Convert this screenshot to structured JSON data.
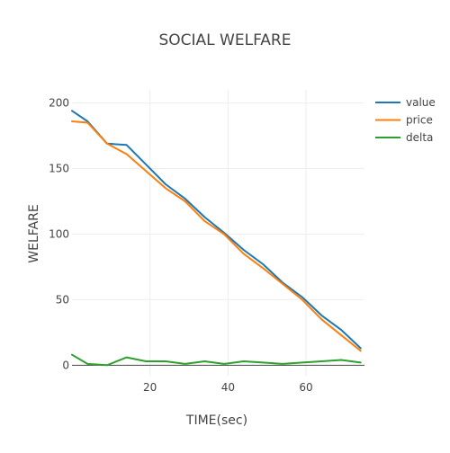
{
  "chart_data": {
    "type": "line",
    "title": "SOCIAL WELFARE",
    "xlabel": "TIME(sec)",
    "ylabel": "WELFARE",
    "xlim": [
      0,
      75
    ],
    "ylim": [
      -8,
      210
    ],
    "x_ticks": [
      20,
      40,
      60
    ],
    "y_ticks": [
      0,
      50,
      100,
      150,
      200
    ],
    "grid": true,
    "legend_position": "top-right",
    "x": [
      0,
      4,
      9,
      14,
      19,
      24,
      29,
      34,
      39,
      44,
      49,
      54,
      59,
      64,
      69,
      74
    ],
    "series": [
      {
        "name": "value",
        "color": "#1f77b4",
        "values": [
          194,
          186,
          169,
          168,
          153,
          138,
          127,
          113,
          101,
          88,
          77,
          63,
          52,
          38,
          27,
          13
        ]
      },
      {
        "name": "price",
        "color": "#ff7f0e",
        "values": [
          186,
          185,
          169,
          161,
          148,
          135,
          125,
          110,
          100,
          85,
          74,
          62,
          50,
          35,
          23,
          11
        ]
      },
      {
        "name": "delta",
        "color": "#2ca02c",
        "values": [
          8,
          1,
          0,
          6,
          3,
          3,
          1,
          3,
          1,
          3,
          2,
          1,
          2,
          3,
          4,
          2
        ]
      }
    ]
  }
}
